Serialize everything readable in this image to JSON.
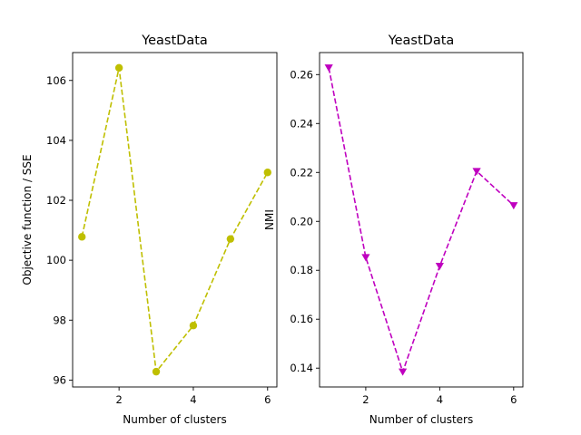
{
  "chart_data": [
    {
      "type": "line",
      "title": "YeastData",
      "xlabel": "Number of clusters",
      "ylabel": "Objective function / SSE",
      "x": [
        1,
        2,
        3,
        4,
        5,
        6
      ],
      "series": [
        {
          "values": [
            100.78,
            106.42,
            96.28,
            97.82,
            100.71,
            102.93
          ],
          "color": "#bfbf00",
          "marker": "circle",
          "line_style": "dashed"
        }
      ],
      "xlim": [
        0.75,
        6.25
      ],
      "ylim": [
        95.77,
        106.93
      ],
      "xticks": [
        2,
        4,
        6
      ],
      "xtick_labels": [
        "2",
        "4",
        "6"
      ],
      "yticks": [
        96,
        98,
        100,
        102,
        104,
        106
      ],
      "ytick_labels": [
        "96",
        "98",
        "100",
        "102",
        "104",
        "106"
      ]
    },
    {
      "type": "line",
      "title": "YeastData",
      "xlabel": "Number of clusters",
      "ylabel": "NMI",
      "x": [
        1,
        2,
        3,
        4,
        5,
        6
      ],
      "series": [
        {
          "values": [
            0.2628,
            0.1853,
            0.1385,
            0.1817,
            0.2205,
            0.2065
          ],
          "color": "#bf00bf",
          "marker": "triangle-down",
          "line_style": "dashed"
        }
      ],
      "xlim": [
        0.75,
        6.25
      ],
      "ylim": [
        0.1323,
        0.269
      ],
      "xticks": [
        2,
        4,
        6
      ],
      "xtick_labels": [
        "2",
        "4",
        "6"
      ],
      "yticks": [
        0.14,
        0.16,
        0.18,
        0.2,
        0.22,
        0.24,
        0.26
      ],
      "ytick_labels": [
        "0.14",
        "0.16",
        "0.18",
        "0.20",
        "0.22",
        "0.24",
        "0.26"
      ]
    }
  ]
}
